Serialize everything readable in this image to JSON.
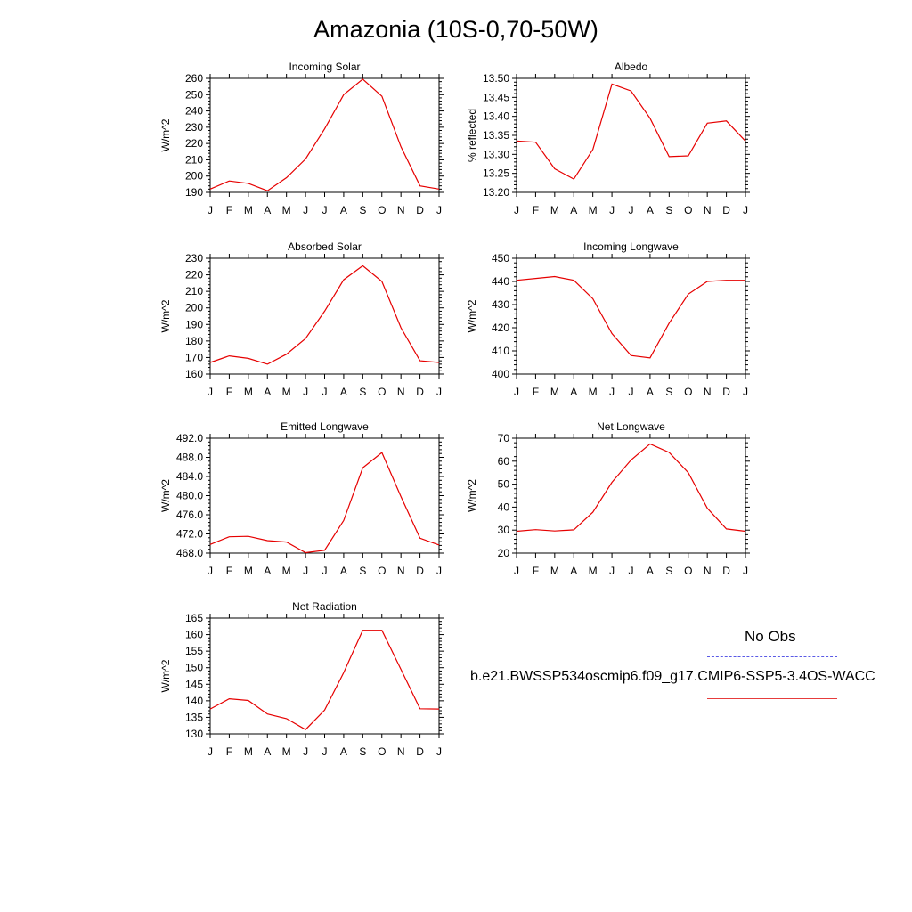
{
  "page_title": "Amazonia (10S-0,70-50W)",
  "legend": {
    "obs_label": "No Obs",
    "run_label": "b.e21.BWSSP534oscmip6.f09_g17.CMIP6-SSP5-3.4OS-WACC",
    "obs_color": "#5a5ae6",
    "run_color": "#e60000"
  },
  "chart_data": [
    {
      "type": "line",
      "title": "Incoming Solar",
      "ylabel": "W/m^2",
      "x": [
        "J",
        "F",
        "M",
        "A",
        "M",
        "J",
        "J",
        "A",
        "S",
        "O",
        "N",
        "D",
        "J"
      ],
      "ylim": [
        190,
        260
      ],
      "yticks": [
        "190",
        "200",
        "210",
        "220",
        "230",
        "240",
        "250",
        "260"
      ],
      "series": [
        {
          "values": [
            192,
            197,
            195.5,
            191,
            199,
            210.5,
            229,
            250,
            259.5,
            249,
            218,
            194,
            192
          ]
        }
      ]
    },
    {
      "type": "line",
      "title": "Albedo",
      "ylabel": "% reflected",
      "x": [
        "J",
        "F",
        "M",
        "A",
        "M",
        "J",
        "J",
        "A",
        "S",
        "O",
        "N",
        "D",
        "J"
      ],
      "ylim": [
        13.2,
        13.5
      ],
      "yticks": [
        "13.20",
        "13.25",
        "13.30",
        "13.35",
        "13.40",
        "13.45",
        "13.50"
      ],
      "series": [
        {
          "values": [
            13.335,
            13.332,
            13.262,
            13.235,
            13.313,
            13.485,
            13.467,
            13.395,
            13.294,
            13.296,
            13.382,
            13.388,
            13.335
          ]
        }
      ]
    },
    {
      "type": "line",
      "title": "Absorbed Solar",
      "ylabel": "W/m^2",
      "x": [
        "J",
        "F",
        "M",
        "A",
        "M",
        "J",
        "J",
        "A",
        "S",
        "O",
        "N",
        "D",
        "J"
      ],
      "ylim": [
        160,
        230
      ],
      "yticks": [
        "160",
        "170",
        "180",
        "190",
        "200",
        "210",
        "220",
        "230"
      ],
      "series": [
        {
          "values": [
            167,
            171,
            169.5,
            166,
            172,
            181.5,
            198,
            217,
            225.5,
            216,
            188,
            168,
            167
          ]
        }
      ]
    },
    {
      "type": "line",
      "title": "Incoming Longwave",
      "ylabel": "W/m^2",
      "x": [
        "J",
        "F",
        "M",
        "A",
        "M",
        "J",
        "J",
        "A",
        "S",
        "O",
        "N",
        "D",
        "J"
      ],
      "ylim": [
        400,
        450
      ],
      "yticks": [
        "400",
        "410",
        "420",
        "430",
        "440",
        "450"
      ],
      "series": [
        {
          "values": [
            440.5,
            441.3,
            442.1,
            440.5,
            432.5,
            417.5,
            408,
            407,
            422,
            434.5,
            440,
            440.5,
            440.5
          ]
        }
      ]
    },
    {
      "type": "line",
      "title": "Emitted Longwave",
      "ylabel": "W/m^2",
      "x": [
        "J",
        "F",
        "M",
        "A",
        "M",
        "J",
        "J",
        "A",
        "S",
        "O",
        "N",
        "D",
        "J"
      ],
      "ylim": [
        468,
        492
      ],
      "yticks": [
        "468.0",
        "472.0",
        "476.0",
        "480.0",
        "484.0",
        "488.0",
        "492.0"
      ],
      "series": [
        {
          "values": [
            469.8,
            471.4,
            471.5,
            470.6,
            470.3,
            468.1,
            468.6,
            474.8,
            485.8,
            489.0,
            479.8,
            471.1,
            469.7
          ]
        }
      ]
    },
    {
      "type": "line",
      "title": "Net Longwave",
      "ylabel": "W/m^2",
      "x": [
        "J",
        "F",
        "M",
        "A",
        "M",
        "J",
        "J",
        "A",
        "S",
        "O",
        "N",
        "D",
        "J"
      ],
      "ylim": [
        20,
        70
      ],
      "yticks": [
        "20",
        "30",
        "40",
        "50",
        "60",
        "70"
      ],
      "series": [
        {
          "values": [
            29.5,
            30.2,
            29.6,
            30.1,
            37.8,
            50.8,
            60.5,
            67.5,
            63.8,
            55,
            39.5,
            30.5,
            29.5
          ]
        }
      ]
    },
    {
      "type": "line",
      "title": "Net Radiation",
      "ylabel": "W/m^2",
      "x": [
        "J",
        "F",
        "M",
        "A",
        "M",
        "J",
        "J",
        "A",
        "S",
        "O",
        "N",
        "D",
        "J"
      ],
      "ylim": [
        130,
        165
      ],
      "yticks": [
        "130",
        "135",
        "140",
        "145",
        "150",
        "155",
        "160",
        "165"
      ],
      "series": [
        {
          "values": [
            137.5,
            140.6,
            140.1,
            136,
            134.6,
            131.3,
            137.2,
            148.5,
            161.3,
            161.3,
            149.5,
            137.6,
            137.5
          ]
        }
      ]
    }
  ]
}
